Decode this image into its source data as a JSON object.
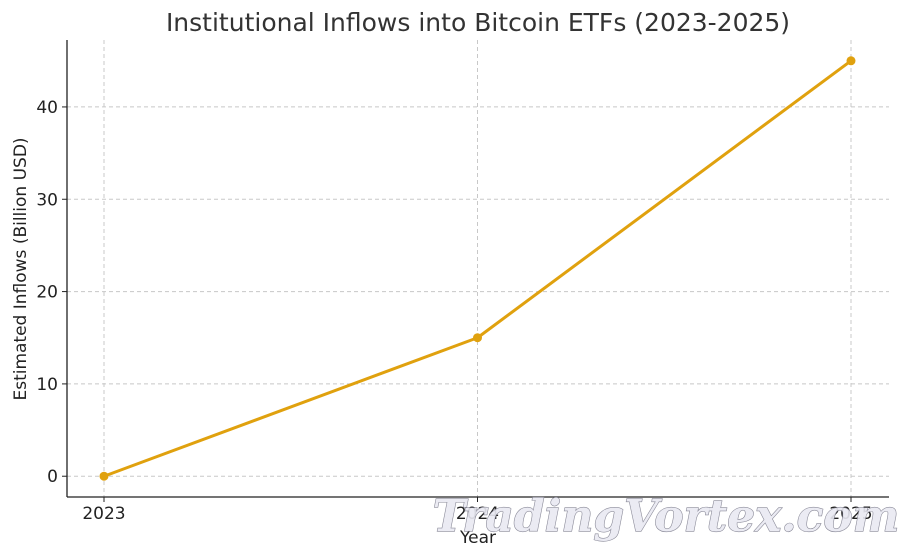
{
  "chart_data": {
    "type": "line",
    "title": "Institutional Inflows into Bitcoin ETFs (2023-2025)",
    "xlabel": "Year",
    "ylabel": "Estimated Inflows (Billion USD)",
    "categories": [
      "2023",
      "2024",
      "2025"
    ],
    "series": [
      {
        "values": [
          0,
          15,
          45
        ],
        "color": "#e0a10e"
      }
    ],
    "y_ticks": [
      0,
      10,
      20,
      30,
      40
    ],
    "ylim": [
      -2.25,
      47.25
    ],
    "grid": true,
    "legend": "none"
  },
  "watermark": "TradingVortex.com"
}
